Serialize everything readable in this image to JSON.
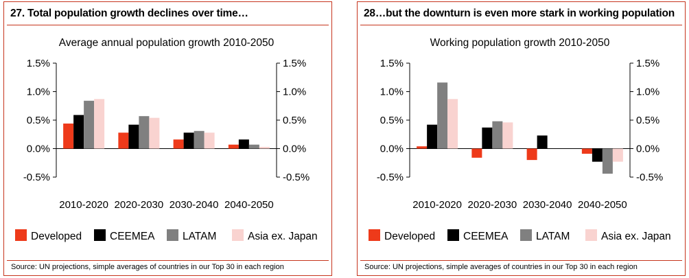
{
  "panels": [
    {
      "title": "27. Total population growth declines over time…",
      "source": "Source: UN projections, simple averages of countries in our Top 30 in each region",
      "chart_data": {
        "type": "bar",
        "title": "Average annual population growth 2010-2050",
        "categories": [
          "2010-2020",
          "2020-2030",
          "2030-2040",
          "2040-2050"
        ],
        "series": [
          {
            "name": "Developed",
            "color": "#ee3a1a",
            "values": [
              0.44,
              0.28,
              0.16,
              0.07
            ]
          },
          {
            "name": "CEEMEA",
            "color": "#000000",
            "values": [
              0.59,
              0.42,
              0.28,
              0.16
            ]
          },
          {
            "name": "LATAM",
            "color": "#808080",
            "values": [
              0.84,
              0.57,
              0.31,
              0.07
            ]
          },
          {
            "name": "Asia ex. Japan",
            "color": "#f9d3d0",
            "values": [
              0.87,
              0.54,
              0.28,
              0.03
            ]
          }
        ],
        "yticks": [
          "1.5%",
          "1.0%",
          "0.5%",
          "0.0%",
          "-0.5%"
        ],
        "ylim": [
          -0.5,
          1.5
        ],
        "dual_axis": true,
        "legend_position": "bottom",
        "grid": false
      }
    },
    {
      "title": "28…but the downturn is even more stark in working population",
      "source": "Source: UN projections, simple averages of countries in our Top 30 in each region",
      "chart_data": {
        "type": "bar",
        "title": "Working population growth 2010-2050",
        "categories": [
          "2010-2020",
          "2020-2030",
          "2030-2040",
          "2040-2050"
        ],
        "series": [
          {
            "name": "Developed",
            "color": "#ee3a1a",
            "values": [
              0.04,
              -0.16,
              -0.2,
              -0.09
            ]
          },
          {
            "name": "CEEMEA",
            "color": "#000000",
            "values": [
              0.42,
              0.37,
              0.23,
              -0.23
            ]
          },
          {
            "name": "LATAM",
            "color": "#808080",
            "values": [
              1.16,
              0.48,
              0.0,
              -0.44
            ]
          },
          {
            "name": "Asia ex. Japan",
            "color": "#f9d3d0",
            "values": [
              0.87,
              0.46,
              0.0,
              -0.23
            ]
          }
        ],
        "yticks": [
          "1.5%",
          "1.0%",
          "0.5%",
          "0.0%",
          "-0.5%"
        ],
        "ylim": [
          -0.5,
          1.5
        ],
        "dual_axis": true,
        "legend_position": "bottom",
        "grid": false
      }
    }
  ]
}
